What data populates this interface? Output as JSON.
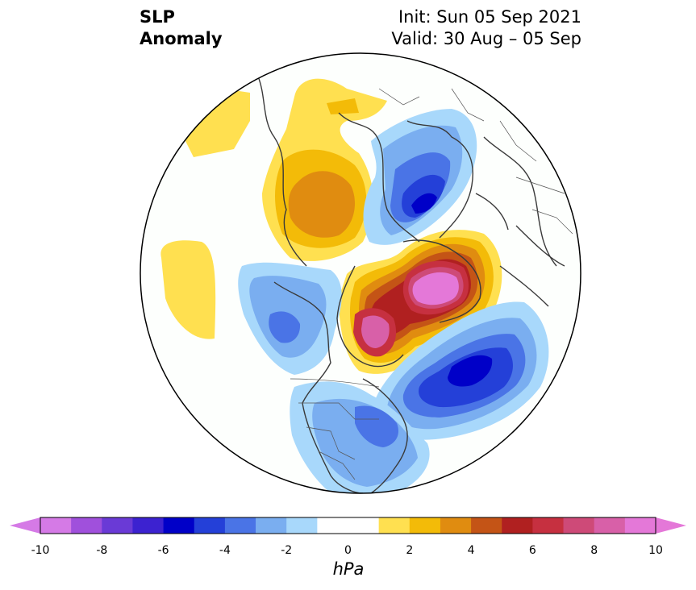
{
  "header": {
    "title_line1": "SLP",
    "title_line2": "Anomaly",
    "init_text": "Init: Sun 05 Sep 2021",
    "valid_text": "Valid: 30 Aug – 05 Sep"
  },
  "colorbar": {
    "unit": "hPa",
    "ticks": [
      "-10",
      "-8",
      "-6",
      "-4",
      "-2",
      "0",
      "2",
      "4",
      "6",
      "8",
      "10"
    ],
    "colors": [
      "#d57ae6",
      "#a050dc",
      "#6a3ad6",
      "#3c22d0",
      "#0000c8",
      "#2440d8",
      "#4a74e6",
      "#7aaef0",
      "#a8d8fb",
      "#ffffff",
      "#ffffff",
      "#ffe050",
      "#f3bb08",
      "#e08c10",
      "#c45416",
      "#b02020",
      "#c63040",
      "#ce4a78",
      "#d860a8",
      "#e478d8"
    ],
    "extend_min_color": "#d57ae6",
    "extend_max_color": "#e478d8"
  },
  "map": {
    "projection": "north-polar-stereographic",
    "anomalies": [
      {
        "name": "positive-pacific-arc",
        "value_hpa": 1.5
      },
      {
        "name": "positive-central-pacific",
        "value_hpa": 1.5
      },
      {
        "name": "positive-siberia",
        "value_hpa": 3.5
      },
      {
        "name": "negative-barents-kara",
        "value_hpa": -5.5
      },
      {
        "name": "positive-greenland",
        "value_hpa": 10
      },
      {
        "name": "positive-hudson-bay",
        "value_hpa": 8
      },
      {
        "name": "negative-north-atlantic",
        "value_hpa": -6
      },
      {
        "name": "negative-eastern-us",
        "value_hpa": -3.5
      },
      {
        "name": "negative-alaska",
        "value_hpa": -3
      }
    ]
  }
}
